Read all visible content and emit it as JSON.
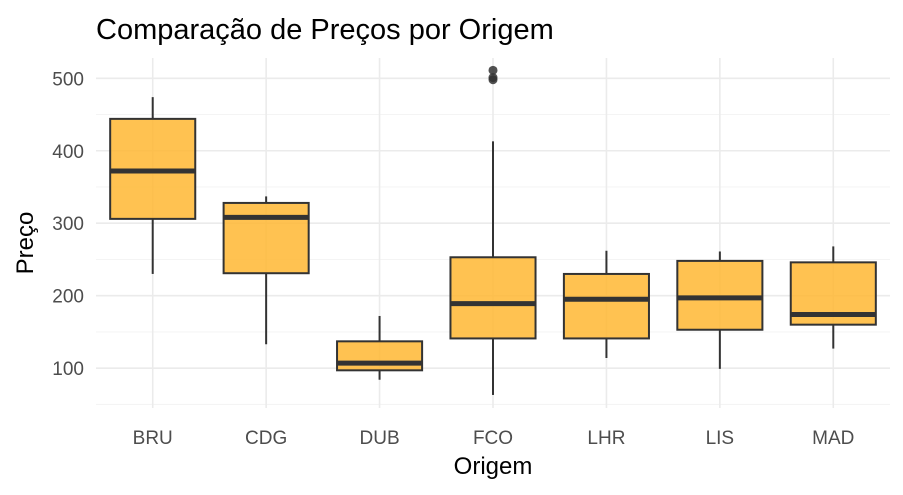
{
  "chart_data": {
    "type": "boxplot",
    "title": "Comparação de Preços por Origem",
    "xlabel": "Origem",
    "ylabel": "Preço",
    "ylim": [
      45,
      528
    ],
    "yticks": [
      100,
      200,
      300,
      400,
      500
    ],
    "grid": true,
    "box_fill": "#ffb732",
    "box_fill_opacity": 0.85,
    "box_stroke": "#333333",
    "outlier_color": "#333333",
    "categories": [
      "BRU",
      "CDG",
      "DUB",
      "FCO",
      "LHR",
      "LIS",
      "MAD"
    ],
    "boxes": [
      {
        "category": "BRU",
        "min": 230,
        "q1": 306,
        "median": 372,
        "q3": 444,
        "max": 474,
        "outliers": []
      },
      {
        "category": "CDG",
        "min": 133,
        "q1": 231,
        "median": 308,
        "q3": 328,
        "max": 337,
        "outliers": []
      },
      {
        "category": "DUB",
        "min": 84,
        "q1": 97,
        "median": 107,
        "q3": 137,
        "max": 172,
        "outliers": []
      },
      {
        "category": "FCO",
        "min": 63,
        "q1": 141,
        "median": 189,
        "q3": 253,
        "max": 413,
        "outliers": [
          498,
          501,
          511
        ]
      },
      {
        "category": "LHR",
        "min": 114,
        "q1": 141,
        "median": 195,
        "q3": 230,
        "max": 262,
        "outliers": []
      },
      {
        "category": "LIS",
        "min": 99,
        "q1": 153,
        "median": 197,
        "q3": 248,
        "max": 261,
        "outliers": []
      },
      {
        "category": "MAD",
        "min": 127,
        "q1": 160,
        "median": 174,
        "q3": 246,
        "max": 268,
        "outliers": []
      }
    ]
  }
}
